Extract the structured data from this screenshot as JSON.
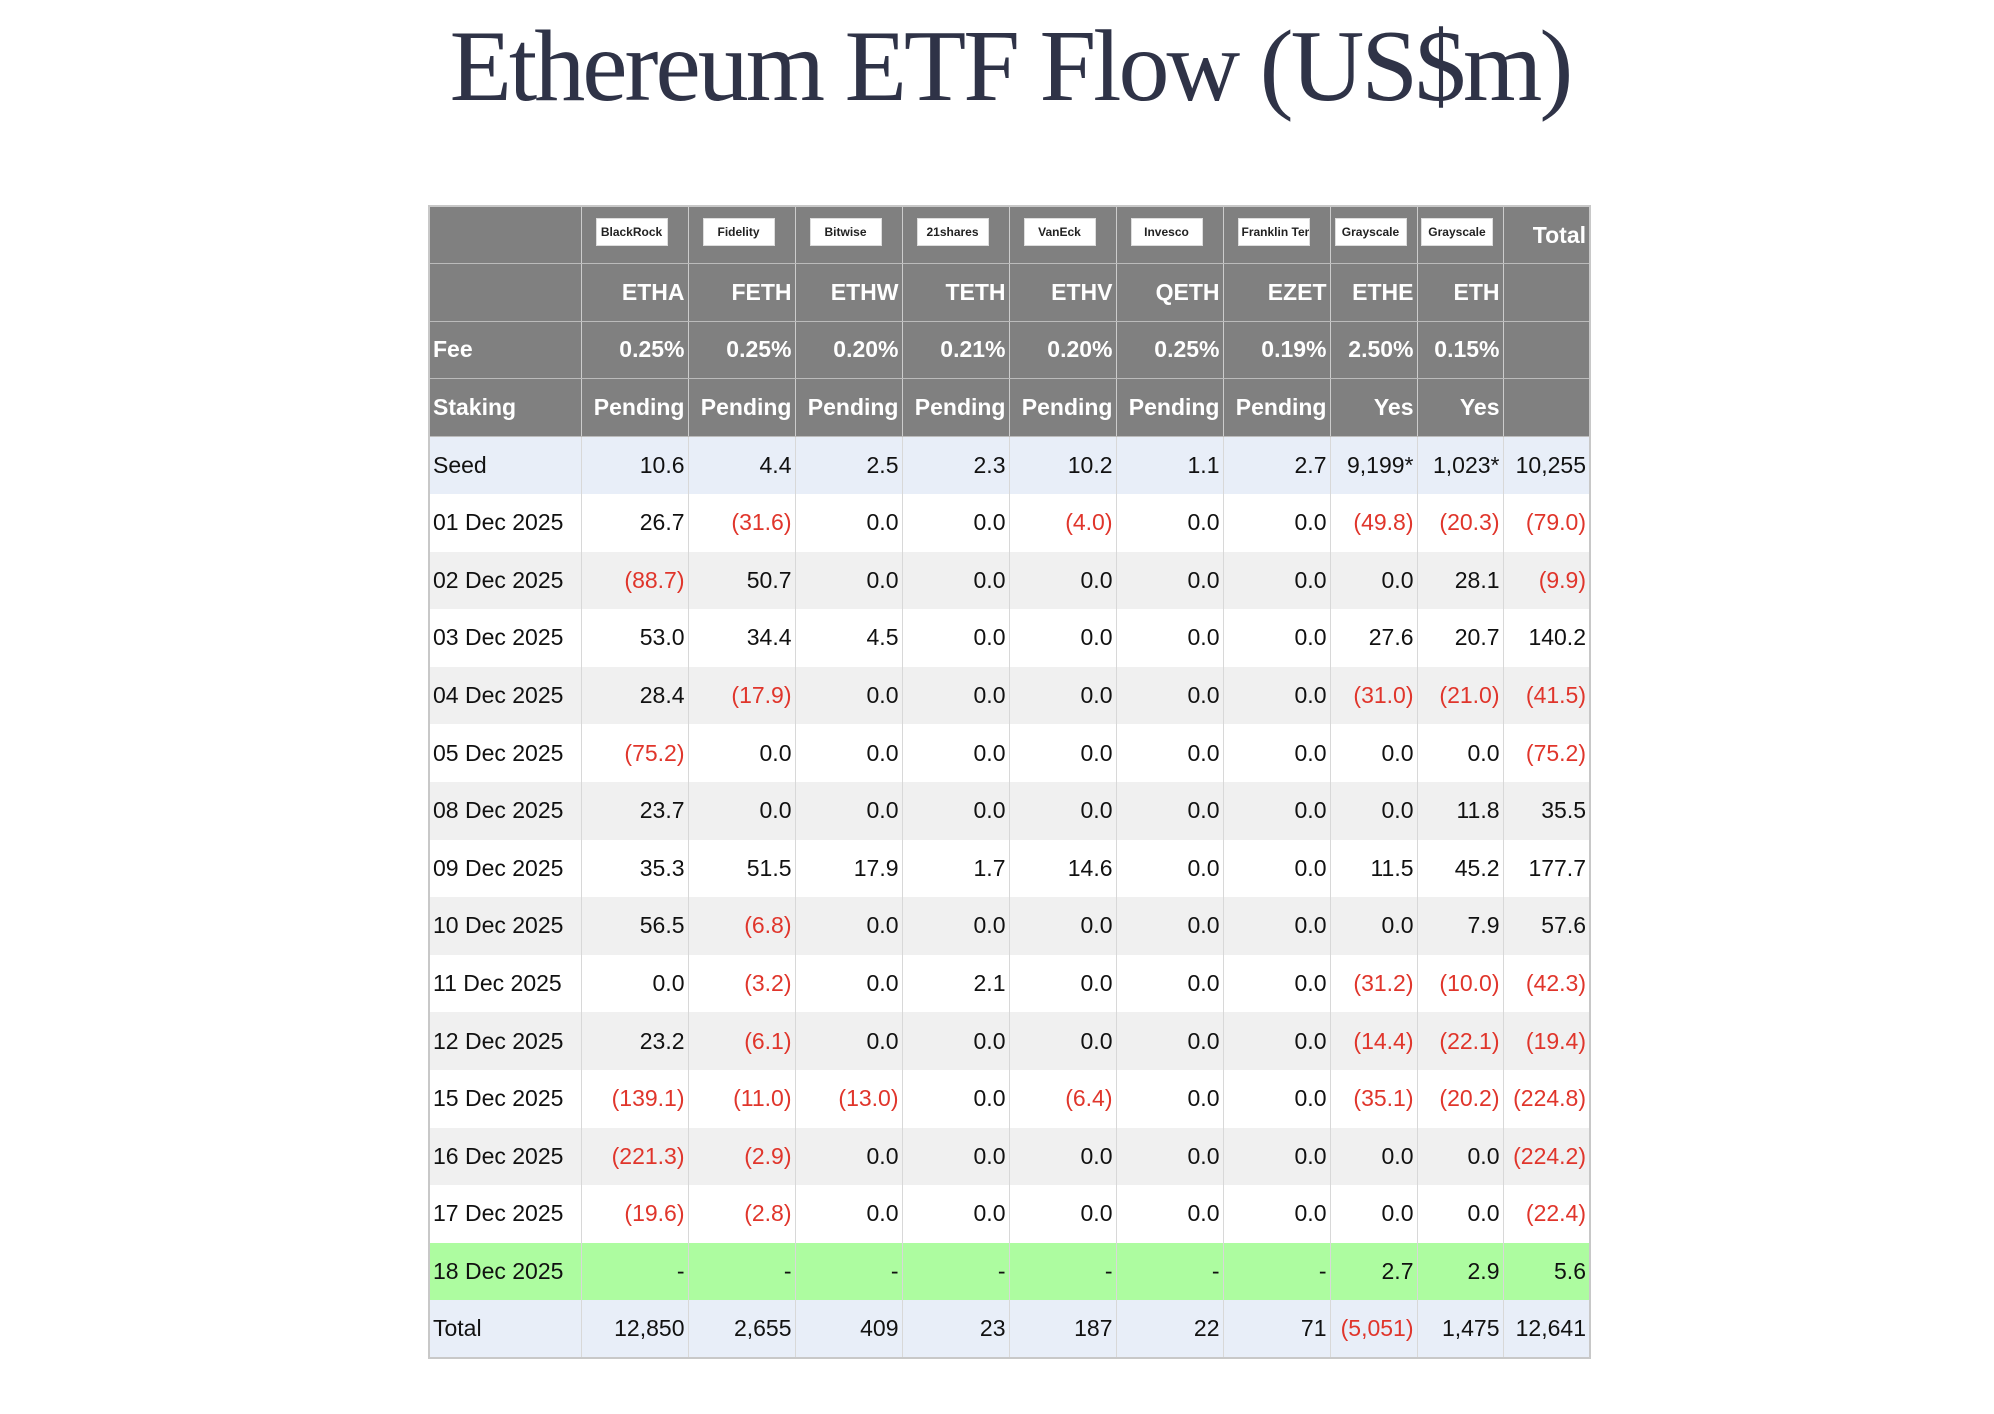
{
  "title": "Ethereum ETF Flow (US$m)",
  "table": {
    "logos": [
      "BlackRock",
      "Fidelity",
      "Bitwise",
      "21shares",
      "VanEck",
      "Invesco",
      "Franklin Templeton",
      "Grayscale",
      "Grayscale"
    ],
    "total_header": "Total",
    "tickers": [
      "ETHA",
      "FETH",
      "ETHW",
      "TETH",
      "ETHV",
      "QETH",
      "EZET",
      "ETHE",
      "ETH"
    ],
    "fee_label": "Fee",
    "fees": [
      "0.25%",
      "0.25%",
      "0.20%",
      "0.21%",
      "0.20%",
      "0.25%",
      "0.19%",
      "2.50%",
      "0.15%"
    ],
    "staking_label": "Staking",
    "staking": [
      "Pending",
      "Pending",
      "Pending",
      "Pending",
      "Pending",
      "Pending",
      "Pending",
      "Yes",
      "Yes"
    ],
    "rows": [
      [
        "Seed",
        "10.6",
        "4.4",
        "2.5",
        "2.3",
        "10.2",
        "1.1",
        "2.7",
        "9,199*",
        "1,023*",
        "10,255"
      ],
      [
        "01 Dec 2025",
        "26.7",
        "(31.6)",
        "0.0",
        "0.0",
        "(4.0)",
        "0.0",
        "0.0",
        "(49.8)",
        "(20.3)",
        "(79.0)"
      ],
      [
        "02 Dec 2025",
        "(88.7)",
        "50.7",
        "0.0",
        "0.0",
        "0.0",
        "0.0",
        "0.0",
        "0.0",
        "28.1",
        "(9.9)"
      ],
      [
        "03 Dec 2025",
        "53.0",
        "34.4",
        "4.5",
        "0.0",
        "0.0",
        "0.0",
        "0.0",
        "27.6",
        "20.7",
        "140.2"
      ],
      [
        "04 Dec 2025",
        "28.4",
        "(17.9)",
        "0.0",
        "0.0",
        "0.0",
        "0.0",
        "0.0",
        "(31.0)",
        "(21.0)",
        "(41.5)"
      ],
      [
        "05 Dec 2025",
        "(75.2)",
        "0.0",
        "0.0",
        "0.0",
        "0.0",
        "0.0",
        "0.0",
        "0.0",
        "0.0",
        "(75.2)"
      ],
      [
        "08 Dec 2025",
        "23.7",
        "0.0",
        "0.0",
        "0.0",
        "0.0",
        "0.0",
        "0.0",
        "0.0",
        "11.8",
        "35.5"
      ],
      [
        "09 Dec 2025",
        "35.3",
        "51.5",
        "17.9",
        "1.7",
        "14.6",
        "0.0",
        "0.0",
        "11.5",
        "45.2",
        "177.7"
      ],
      [
        "10 Dec 2025",
        "56.5",
        "(6.8)",
        "0.0",
        "0.0",
        "0.0",
        "0.0",
        "0.0",
        "0.0",
        "7.9",
        "57.6"
      ],
      [
        "11 Dec 2025",
        "0.0",
        "(3.2)",
        "0.0",
        "2.1",
        "0.0",
        "0.0",
        "0.0",
        "(31.2)",
        "(10.0)",
        "(42.3)"
      ],
      [
        "12 Dec 2025",
        "23.2",
        "(6.1)",
        "0.0",
        "0.0",
        "0.0",
        "0.0",
        "0.0",
        "(14.4)",
        "(22.1)",
        "(19.4)"
      ],
      [
        "15 Dec 2025",
        "(139.1)",
        "(11.0)",
        "(13.0)",
        "0.0",
        "(6.4)",
        "0.0",
        "0.0",
        "(35.1)",
        "(20.2)",
        "(224.8)"
      ],
      [
        "16 Dec 2025",
        "(221.3)",
        "(2.9)",
        "0.0",
        "0.0",
        "0.0",
        "0.0",
        "0.0",
        "0.0",
        "0.0",
        "(224.2)"
      ],
      [
        "17 Dec 2025",
        "(19.6)",
        "(2.8)",
        "0.0",
        "0.0",
        "0.0",
        "0.0",
        "0.0",
        "0.0",
        "0.0",
        "(22.4)"
      ],
      [
        "18 Dec 2025",
        "-",
        "-",
        "-",
        "-",
        "-",
        "-",
        "-",
        "2.7",
        "2.9",
        "5.6"
      ],
      [
        "Total",
        "12,850",
        "2,655",
        "409",
        "23",
        "187",
        "22",
        "71",
        "(5,051)",
        "1,475",
        "12,641"
      ]
    ]
  }
}
